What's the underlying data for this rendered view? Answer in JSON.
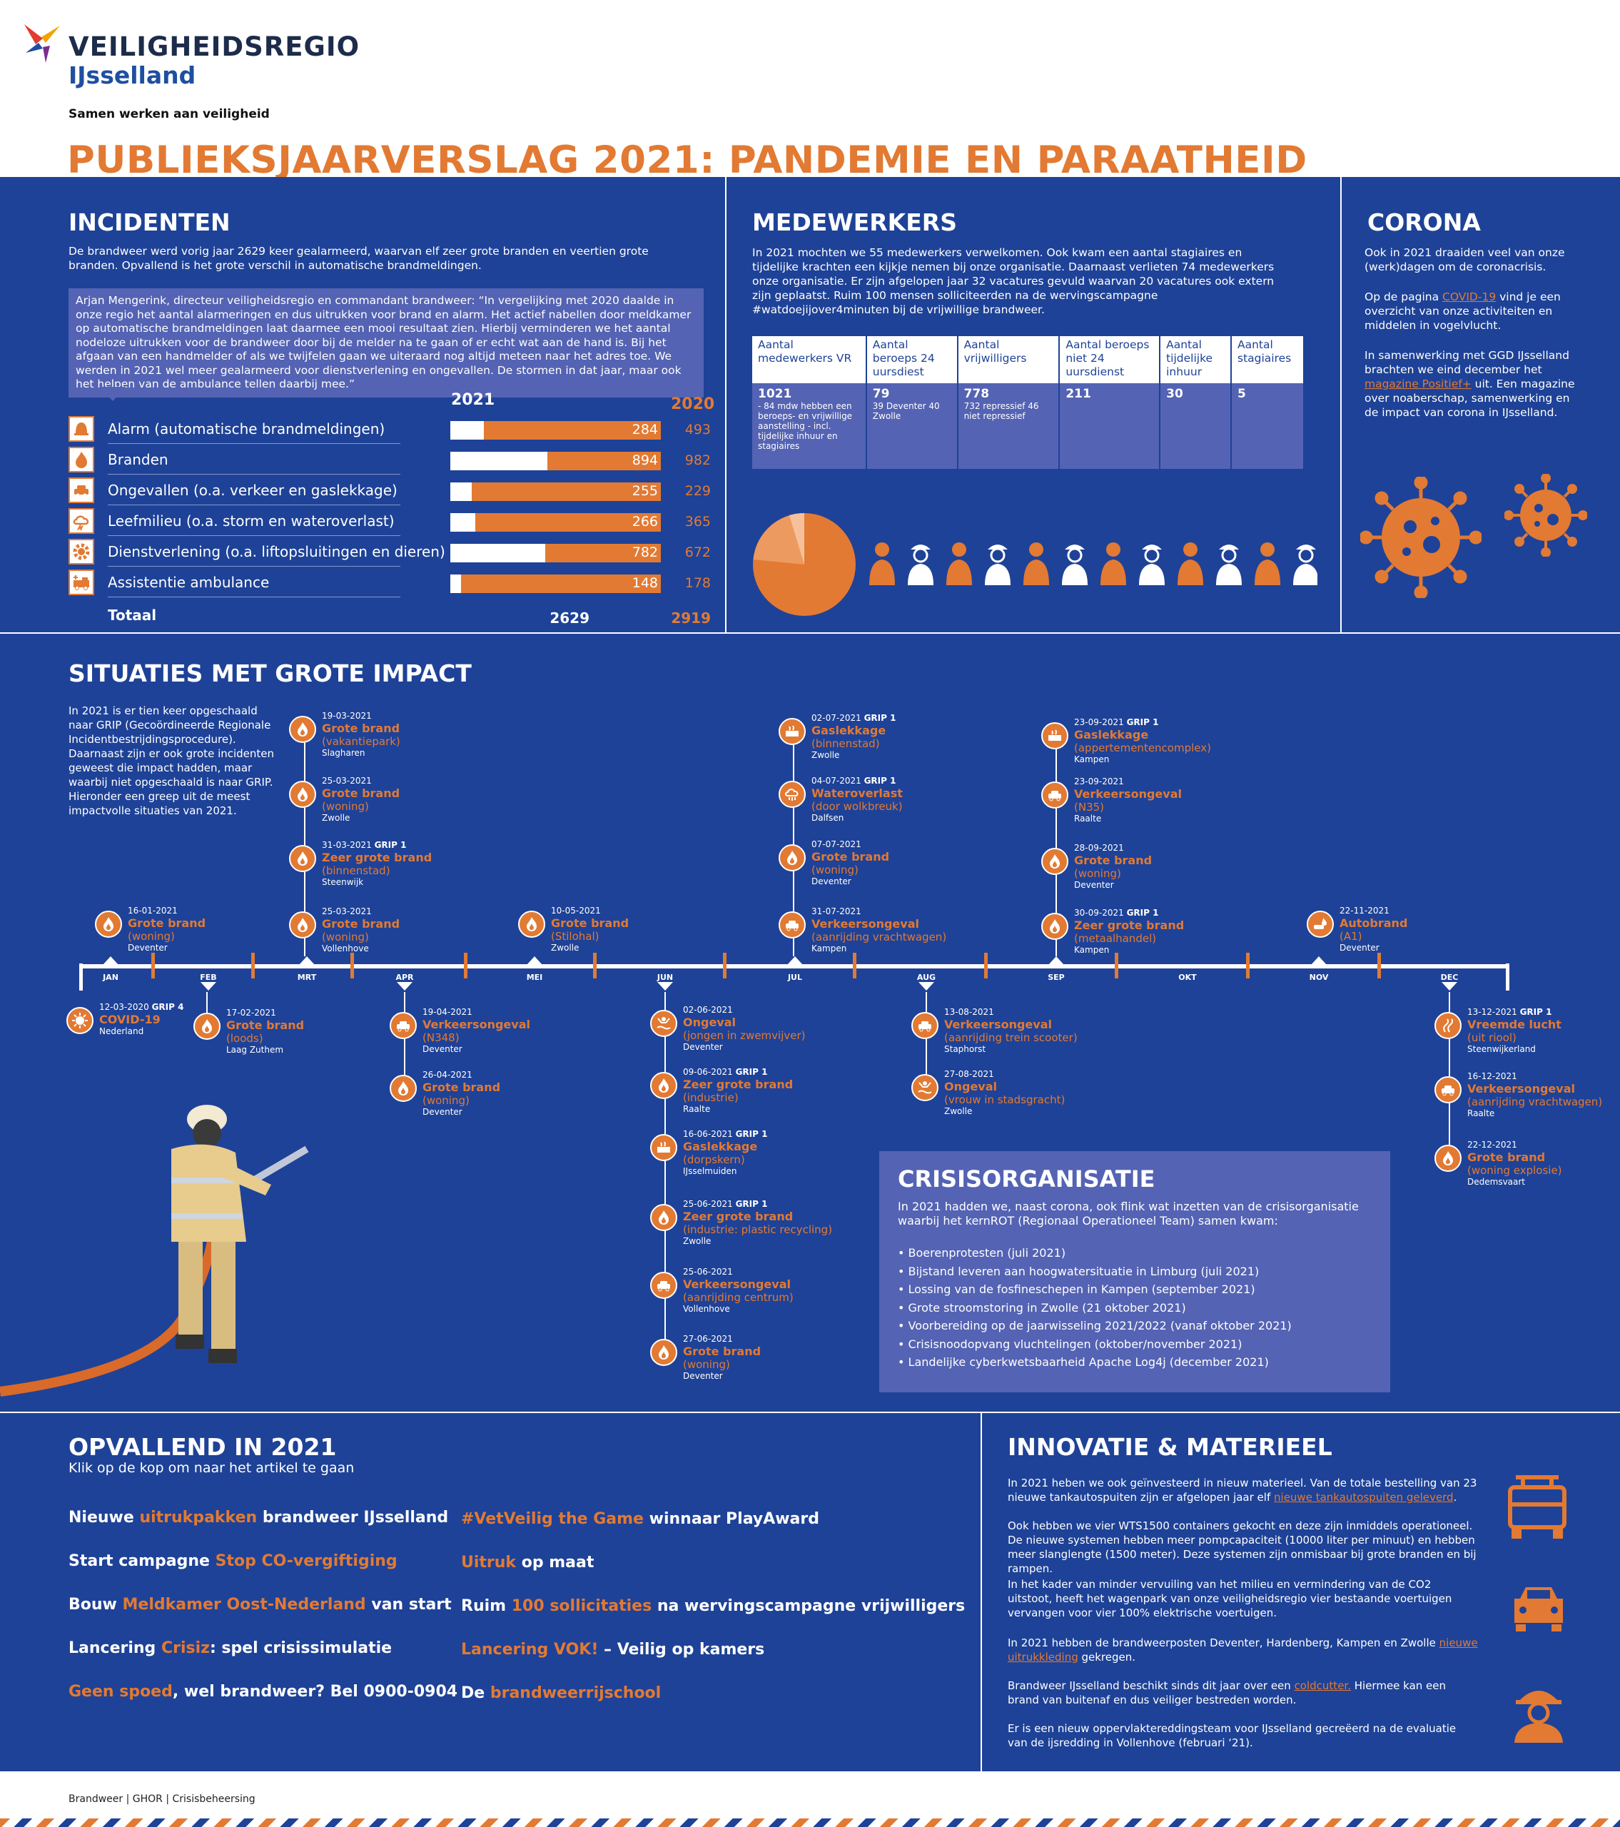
{
  "header": {
    "logo_name": "VEILIGHEIDSREGIO",
    "logo_region": "IJsselland",
    "tagline": "Samen werken aan veiligheid",
    "title": "PUBLIEKSJAARVERSLAG 2021: PANDEMIE EN PARAATHEID"
  },
  "incidenten": {
    "heading": "INCIDENTEN",
    "intro": "De brandweer werd vorig jaar 2629 keer gealarmeerd, waarvan elf zeer grote branden en veertien grote branden. Opvallend is het grote verschil in automatische brandmeldingen.",
    "quote": "Arjan Mengerink, directeur veiligheidsregio en commandant brandweer: “In vergelijking met 2020 daalde in onze regio het aantal alarmeringen en dus uitrukken voor brand en alarm. Het actief nabellen door meldkamer op automatische brandmeldingen laat daarmee een mooi resultaat zien. Hierbij verminderen we het aantal nodeloze uitrukken voor de brandweer door bij de melder na te gaan of er echt wat aan de hand is. Bij het afgaan van een handmelder of als we twijfelen gaan we uiteraard nog altijd meteen naar het adres toe. We werden in 2021 wel meer gealarmeerd voor dienstverlening en ongevallen. De stormen in dat jaar, maar ook het helpen van de ambulance tellen daarbij mee.”",
    "col_2021": "2021",
    "col_2020": "2020",
    "rows": [
      {
        "label": "Alarm (automatische brandmeldingen)",
        "v2021": "284",
        "v2020": "493",
        "fraction": 0.16
      },
      {
        "label": "Branden",
        "v2021": "894",
        "v2020": "982",
        "fraction": 0.46
      },
      {
        "label": "Ongevallen (o.a. verkeer en gaslekkage)",
        "v2021": "255",
        "v2020": "229",
        "fraction": 0.1
      },
      {
        "label": "Leefmilieu (o.a. storm en wateroverlast)",
        "v2021": "266",
        "v2020": "365",
        "fraction": 0.12
      },
      {
        "label": "Dienstverlening (o.a. liftopsluitingen en dieren)",
        "v2021": "782",
        "v2020": "672",
        "fraction": 0.45
      },
      {
        "label": "Assistentie ambulance",
        "v2021": "148",
        "v2020": "178",
        "fraction": 0.05
      }
    ],
    "total_label": "Totaal",
    "total_2021": "2629",
    "total_2020": "2919"
  },
  "medewerkers": {
    "heading": "MEDEWERKERS",
    "intro": "In 2021 mochten we 55 medewerkers verwelkomen. Ook kwam een aantal stagiaires en tijdelijke krachten een kijkje nemen bij onze organisatie. Daarnaast verlieten 74 medewerkers onze organisatie. Er zijn afgelopen jaar 32 vacatures gevuld waarvan 20 vacatures ook extern zijn geplaatst. Ruim 100 mensen solliciteerden na de wervingscampagne #watdoejijover4minuten bij de vrijwillige brandweer.",
    "table": [
      {
        "head": "Aantal medewerkers VR",
        "value": "1021",
        "note": "- 84 mdw hebben een beroeps- en vrijwillige aanstelling - incl. tijdelijke inhuur en stagiaires"
      },
      {
        "head": "Aantal beroeps 24 uursdiest",
        "value": "79",
        "note": "39 Deventer 40 Zwolle"
      },
      {
        "head": "Aantal vrijwilligers",
        "value": "778",
        "note": "732 repressief 46 niet repressief"
      },
      {
        "head": "Aantal beroeps niet 24 uursdienst",
        "value": "211",
        "note": ""
      },
      {
        "head": "Aantal tijdelijke inhuur",
        "value": "30",
        "note": ""
      },
      {
        "head": "Aantal stagiaires",
        "value": "5",
        "note": ""
      }
    ]
  },
  "corona": {
    "heading": "CORONA",
    "p1": "Ook in 2021 draaiden veel van onze (werk)dagen om de coronacrisis.",
    "p2_pre": "Op de pagina ",
    "p2_link": "COVID-19",
    "p2_post": " vind je een overzicht van onze activiteiten en middelen in vogelvlucht.",
    "p3_pre": "In samenwerking met GGD IJsselland brachten we eind december het ",
    "p3_link": "magazine Positief+",
    "p3_post": " uit. Een magazine over noaberschap, samenwerking en de impact van corona in IJsselland."
  },
  "situaties": {
    "heading": "SITUATIES MET GROTE IMPACT",
    "intro": "In 2021 is er tien keer opgeschaald naar GRIP (Gecoördineerde Regionale Incidentbestrijdingsprocedure). Daarnaast zijn er ook grote incidenten geweest die impact hadden, maar waarbij niet opgeschaald is naar GRIP. Hieronder een greep uit de meest impactvolle situaties van 2021.",
    "months": [
      "JAN",
      "FEB",
      "MRT",
      "APR",
      "MEI",
      "JUN",
      "JUL",
      "AUG",
      "SEP",
      "OKT",
      "NOV",
      "DEC"
    ],
    "events": [
      {
        "date": "16-01-2021",
        "grip": "",
        "title": "Grote brand",
        "sub": "(woning)",
        "place": "Deventer",
        "icon": "flame-icon"
      },
      {
        "date": "19-03-2021",
        "grip": "",
        "title": "Grote brand",
        "sub": "(vakantiepark)",
        "place": "Slagharen",
        "icon": "flame-icon"
      },
      {
        "date": "25-03-2021",
        "grip": "",
        "title": "Grote brand",
        "sub": "(woning)",
        "place": "Zwolle",
        "icon": "flame-icon"
      },
      {
        "date": "31-03-2021",
        "grip": "GRIP 1",
        "title": "Zeer grote brand",
        "sub": "(binnenstad)",
        "place": "Steenwijk",
        "icon": "flame-icon"
      },
      {
        "date": "25-03-2021",
        "grip": "",
        "title": "Grote brand",
        "sub": "(woning)",
        "place": "Vollenhove",
        "icon": "flame-icon"
      },
      {
        "date": "10-05-2021",
        "grip": "",
        "title": "Grote brand",
        "sub": "(Stilohal)",
        "place": "Zwolle",
        "icon": "flame-icon"
      },
      {
        "date": "02-07-2021",
        "grip": "GRIP 1",
        "title": "Gaslekkage",
        "sub": "(binnenstad)",
        "place": "Zwolle",
        "icon": "gas-icon"
      },
      {
        "date": "04-07-2021",
        "grip": "GRIP 1",
        "title": "Wateroverlast",
        "sub": "(door wolkbreuk)",
        "place": "Dalfsen",
        "icon": "cloud-rain-icon"
      },
      {
        "date": "07-07-2021",
        "grip": "",
        "title": "Grote brand",
        "sub": "(woning)",
        "place": "Deventer",
        "icon": "flame-icon"
      },
      {
        "date": "31-07-2021",
        "grip": "",
        "title": "Verkeersongeval",
        "sub": "(aanrijding vrachtwagen)",
        "place": "Kampen",
        "icon": "car-crash-icon"
      },
      {
        "date": "23-09-2021",
        "grip": "GRIP 1",
        "title": "Gaslekkage",
        "sub": "(appertementencomplex)",
        "place": "Kampen",
        "icon": "gas-icon"
      },
      {
        "date": "23-09-2021",
        "grip": "",
        "title": "Verkeersongeval",
        "sub": "(N35)",
        "place": "Raalte",
        "icon": "car-crash-icon"
      },
      {
        "date": "28-09-2021",
        "grip": "",
        "title": "Grote brand",
        "sub": "(woning)",
        "place": "Deventer",
        "icon": "flame-icon"
      },
      {
        "date": "30-09-2021",
        "grip": "GRIP 1",
        "title": "Zeer grote brand",
        "sub": "(metaalhandel)",
        "place": "Kampen",
        "icon": "flame-icon"
      },
      {
        "date": "22-11-2021",
        "grip": "",
        "title": "Autobrand",
        "sub": "(A1)",
        "place": "Deventer",
        "icon": "car-fire-icon"
      },
      {
        "date": "12-03-2020",
        "grip": "GRIP 4",
        "title": "COVID-19",
        "sub": "",
        "place": "Nederland",
        "icon": "virus-icon"
      },
      {
        "date": "17-02-2021",
        "grip": "",
        "title": "Grote brand",
        "sub": "(loods)",
        "place": "Laag Zuthem",
        "icon": "flame-icon"
      },
      {
        "date": "19-04-2021",
        "grip": "",
        "title": "Verkeersongeval",
        "sub": "(N348)",
        "place": "Deventer",
        "icon": "car-crash-icon"
      },
      {
        "date": "26-04-2021",
        "grip": "",
        "title": "Grote brand",
        "sub": "(woning)",
        "place": "Deventer",
        "icon": "flame-icon"
      },
      {
        "date": "02-06-2021",
        "grip": "",
        "title": "Ongeval",
        "sub": "(jongen in zwemvijver)",
        "place": "Deventer",
        "icon": "drowning-icon"
      },
      {
        "date": "09-06-2021",
        "grip": "GRIP 1",
        "title": "Zeer grote brand",
        "sub": "(industrie)",
        "place": "Raalte",
        "icon": "flame-icon"
      },
      {
        "date": "16-06-2021",
        "grip": "GRIP 1",
        "title": "Gaslekkage",
        "sub": "(dorpskern)",
        "place": "IJsselmuiden",
        "icon": "gas-icon"
      },
      {
        "date": "25-06-2021",
        "grip": "GRIP 1",
        "title": "Zeer grote brand",
        "sub": "(industrie: plastic recycling)",
        "place": "Zwolle",
        "icon": "flame-icon"
      },
      {
        "date": "25-06-2021",
        "grip": "",
        "title": "Verkeersongeval",
        "sub": "(aanrijding centrum)",
        "place": "Vollenhove",
        "icon": "car-crash-icon"
      },
      {
        "date": "27-06-2021",
        "grip": "",
        "title": "Grote brand",
        "sub": "(woning)",
        "place": "Deventer",
        "icon": "flame-icon"
      },
      {
        "date": "13-08-2021",
        "grip": "",
        "title": "Verkeersongeval",
        "sub": "(aanrijding trein scooter)",
        "place": "Staphorst",
        "icon": "car-crash-icon"
      },
      {
        "date": "27-08-2021",
        "grip": "",
        "title": "Ongeval",
        "sub": "(vrouw in stadsgracht)",
        "place": "Zwolle",
        "icon": "drowning-icon"
      },
      {
        "date": "13-12-2021",
        "grip": "GRIP 1",
        "title": "Vreemde lucht",
        "sub": "(uit riool)",
        "place": "Steenwijkerland",
        "icon": "smell-icon"
      },
      {
        "date": "16-12-2021",
        "grip": "",
        "title": "Verkeersongeval",
        "sub": "(aanrijding vrachtwagen)",
        "place": "Raalte",
        "icon": "car-crash-icon"
      },
      {
        "date": "22-12-2021",
        "grip": "",
        "title": "Grote brand",
        "sub": "(woning explosie)",
        "place": "Dedemsvaart",
        "icon": "flame-icon"
      }
    ]
  },
  "crisis": {
    "heading": "CRISISORGANISATIE",
    "intro": "In 2021 hadden we, naast corona, ook flink wat inzetten van de crisisorganisatie waarbij het kernROT (Regionaal Operationeel Team) samen kwam:",
    "items": [
      "• Boerenprotesten (juli 2021)",
      "• Bijstand leveren aan hoogwatersituatie in Limburg (juli 2021)",
      "• Lossing van de fosfineschepen in Kampen (september 2021)",
      "• Grote stroomstoring in Zwolle (21 oktober 2021)",
      "• Voorbereiding op de jaarwisseling 2021/2022 (vanaf oktober 2021)",
      "• Crisisnoodopvang vluchtelingen (oktober/november 2021)",
      "• Landelijke cyberkwetsbaarheid Apache Log4j (december 2021)"
    ]
  },
  "opvallend": {
    "heading": "OPVALLEND IN 2021",
    "sub": "Klik op de kop om naar het artikel te gaan",
    "left": [
      {
        "pre": "Nieuwe ",
        "hl": "uitrukpakken",
        "post": " brandweer IJsselland"
      },
      {
        "pre": "Start campagne ",
        "hl": "Stop CO-vergiftiging",
        "post": ""
      },
      {
        "pre": "Bouw ",
        "hl": "Meldkamer Oost-Nederland",
        "post": " van start"
      },
      {
        "pre": "Lancering ",
        "hl": "Crisiz",
        "post": ": spel crisissimulatie"
      },
      {
        "pre": "",
        "hl": "Geen spoed",
        "post": ", wel brandweer? Bel 0900-0904"
      }
    ],
    "right": [
      {
        "pre": "",
        "hl": "#VetVeilig the Game",
        "post": " winnaar PlayAward"
      },
      {
        "pre": "",
        "hl": "Uitruk",
        "post": " op maat"
      },
      {
        "pre": "Ruim ",
        "hl": "100 sollicitaties",
        "post": " na wervingscampagne vrijwilligers"
      },
      {
        "pre": "",
        "hl": "Lancering VOK!",
        "post": " – Veilig op kamers"
      },
      {
        "pre": "De ",
        "hl": "brandweerrijschool",
        "post": ""
      }
    ]
  },
  "innovatie": {
    "heading": "INNOVATIE & MATERIEEL",
    "p1_pre": "In 2021 heben we ook geïnvesteerd in nieuw materieel. Van de totale bestelling van 23 nieuwe tankautospuiten zijn er afgelopen jaar elf ",
    "p1_link": "nieuwe tankautospuiten geleverd",
    "p1_post": ".",
    "p2": "Ook hebben we vier WTS1500 containers gekocht en deze zijn inmiddels operationeel. De nieuwe systemen hebben meer pompcapaciteit (10000 liter per minuut) en hebben meer slanglengte (1500 meter). Deze systemen zijn onmisbaar bij grote branden en bij rampen.",
    "p3": "In het kader van minder vervuiling van het milieu en vermindering van de CO2 uitstoot, heeft het wagenpark van onze veiligheidsregio vier bestaande voertuigen vervangen voor vier 100% elektrische voertuigen.",
    "p4_pre": "In 2021 hebben de brandweerposten Deventer, Hardenberg, Kampen en Zwolle ",
    "p4_link": "nieuwe uitrukkleding",
    "p4_post": " gekregen.",
    "p5_pre": "Brandweer IJsselland beschikt sinds dit jaar over een ",
    "p5_link": "coldcutter.",
    "p5_post": " Hiermee kan een brand van buitenaf en dus veiliger bestreden worden.",
    "p6": "Er is een nieuw oppervlaktereddingsteam voor IJsselland gecreëerd na de evaluatie van de ijsredding in Vollenhove (februari ‘21)."
  },
  "footer": {
    "text": "Brandweer | GHOR | Crisisbeheersing"
  },
  "colors": {
    "blue": "#1e4297",
    "orange": "#e27a33",
    "lightblue": "#5463b3"
  }
}
